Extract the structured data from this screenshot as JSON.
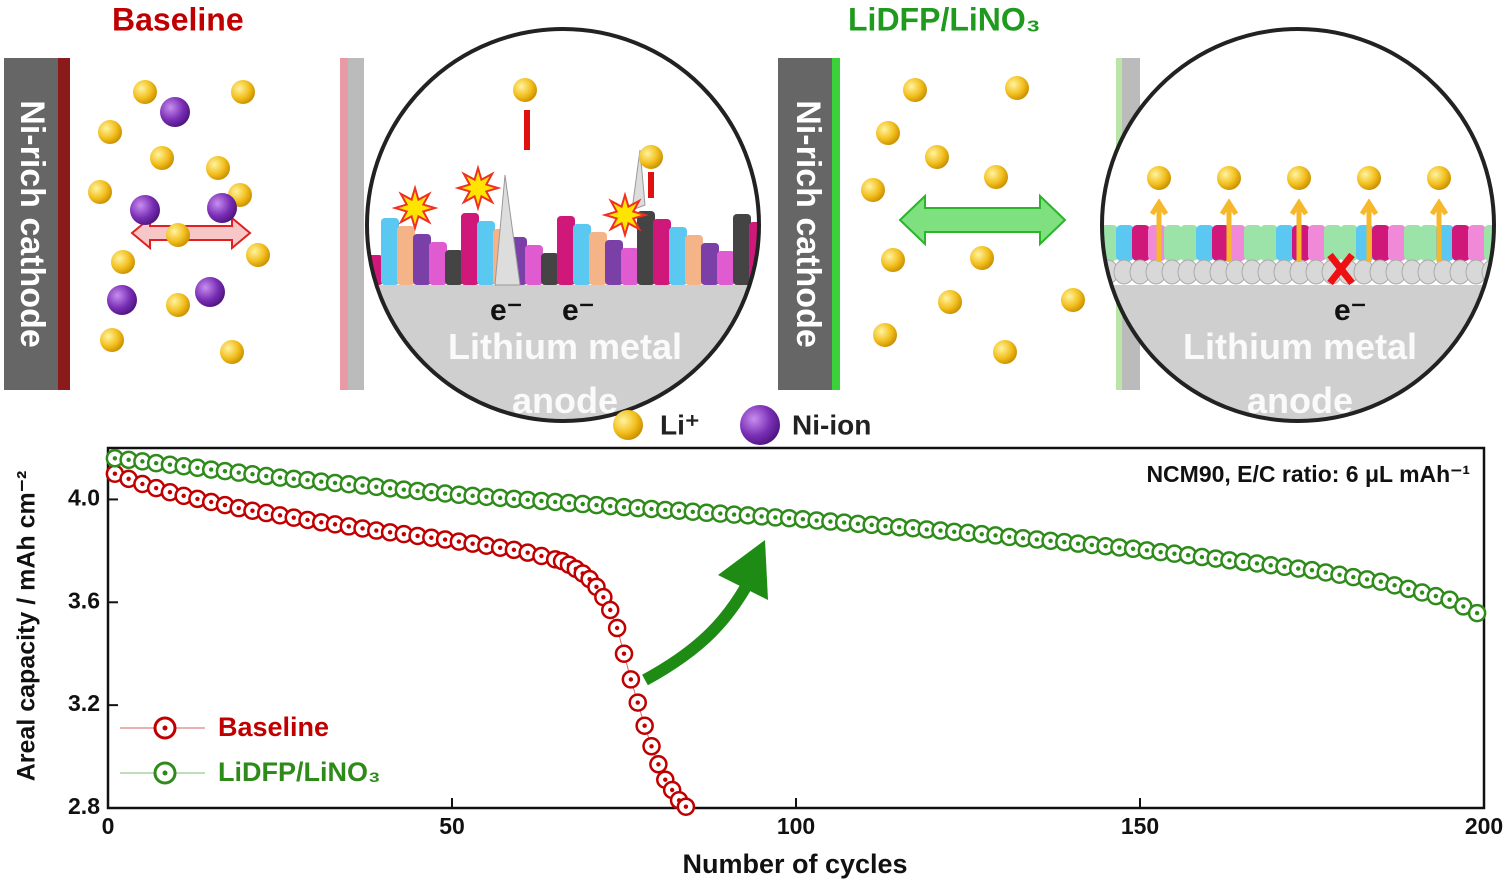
{
  "schematic": {
    "left_title": "Baseline",
    "right_title": "LiDFP/LiNO₃",
    "cathode_left": "Ni-rich cathode",
    "cathode_right": "Ni-rich cathode",
    "electron_labels": [
      "e⁻",
      "e⁻",
      "e⁻"
    ],
    "anode_left": "Lithium metal anode",
    "anode_right": "Lithium metal anode",
    "legend": [
      "Li⁺",
      "Ni-ion"
    ]
  },
  "chart_data": {
    "type": "scatter",
    "annotation": "NCM90, E/C ratio: 6 μL mAh⁻¹",
    "xlabel": "Number of cycles",
    "ylabel": "Areal capacity / mAh cm⁻²",
    "xlim": [
      0,
      200
    ],
    "xticks": [
      0,
      50,
      100,
      150,
      200
    ],
    "ylim": [
      2.8,
      4.2
    ],
    "yticks": [
      2.8,
      3.2,
      3.6,
      {
        "value": 4,
        "label": "4.0"
      }
    ],
    "legend": "lower left",
    "series": [
      {
        "name": "Baseline",
        "color": "#c00000",
        "x": [
          1,
          3,
          5,
          7,
          9,
          11,
          13,
          15,
          17,
          19,
          21,
          23,
          25,
          27,
          29,
          31,
          33,
          35,
          37,
          39,
          41,
          43,
          45,
          47,
          49,
          51,
          53,
          55,
          57,
          59,
          61,
          63,
          65,
          66,
          67,
          68,
          69,
          70,
          71,
          72,
          73,
          74,
          75,
          76,
          77,
          78,
          79,
          80,
          81,
          82,
          83,
          84
        ],
        "values": [
          4.1,
          4.08,
          4.06,
          4.044,
          4.028,
          4.014,
          4.002,
          3.99,
          3.978,
          3.966,
          3.956,
          3.947,
          3.938,
          3.929,
          3.92,
          3.911,
          3.903,
          3.895,
          3.887,
          3.879,
          3.872,
          3.865,
          3.858,
          3.851,
          3.844,
          3.836,
          3.828,
          3.82,
          3.812,
          3.804,
          3.793,
          3.78,
          3.767,
          3.76,
          3.746,
          3.73,
          3.712,
          3.69,
          3.66,
          3.62,
          3.57,
          3.5,
          3.4,
          3.3,
          3.21,
          3.12,
          3.04,
          2.97,
          2.91,
          2.87,
          2.83,
          2.805
        ]
      },
      {
        "name": "LiDFP/LiNO₃",
        "color": "#2e8b1a",
        "x": [
          1,
          3,
          5,
          7,
          9,
          11,
          13,
          15,
          17,
          19,
          21,
          23,
          25,
          27,
          29,
          31,
          33,
          35,
          37,
          39,
          41,
          43,
          45,
          47,
          49,
          51,
          53,
          55,
          57,
          59,
          61,
          63,
          65,
          67,
          69,
          71,
          73,
          75,
          77,
          79,
          81,
          83,
          85,
          87,
          89,
          91,
          93,
          95,
          97,
          99,
          101,
          103,
          105,
          107,
          109,
          111,
          113,
          115,
          117,
          119,
          121,
          123,
          125,
          127,
          129,
          131,
          133,
          135,
          137,
          139,
          141,
          143,
          145,
          147,
          149,
          151,
          153,
          155,
          157,
          159,
          161,
          163,
          165,
          167,
          169,
          171,
          173,
          175,
          177,
          179,
          181,
          183,
          185,
          187,
          189,
          191,
          193,
          195,
          197,
          199
        ],
        "values": [
          4.16,
          4.154,
          4.148,
          4.141,
          4.135,
          4.129,
          4.123,
          4.116,
          4.11,
          4.104,
          4.098,
          4.091,
          4.085,
          4.08,
          4.075,
          4.069,
          4.064,
          4.059,
          4.054,
          4.049,
          4.043,
          4.038,
          4.033,
          4.028,
          4.023,
          4.018,
          4.014,
          4.01,
          4.006,
          4.002,
          3.998,
          3.994,
          3.99,
          3.986,
          3.982,
          3.978,
          3.974,
          3.97,
          3.966,
          3.963,
          3.959,
          3.956,
          3.952,
          3.948,
          3.945,
          3.941,
          3.938,
          3.934,
          3.93,
          3.927,
          3.923,
          3.918,
          3.914,
          3.91,
          3.905,
          3.901,
          3.896,
          3.892,
          3.888,
          3.883,
          3.879,
          3.874,
          3.87,
          3.865,
          3.86,
          3.854,
          3.849,
          3.844,
          3.839,
          3.834,
          3.828,
          3.823,
          3.818,
          3.813,
          3.808,
          3.802,
          3.795,
          3.789,
          3.783,
          3.776,
          3.77,
          3.763,
          3.757,
          3.751,
          3.744,
          3.738,
          3.731,
          3.725,
          3.716,
          3.707,
          3.698,
          3.689,
          3.68,
          3.666,
          3.652,
          3.638,
          3.624,
          3.61,
          3.584,
          3.558
        ]
      }
    ]
  }
}
